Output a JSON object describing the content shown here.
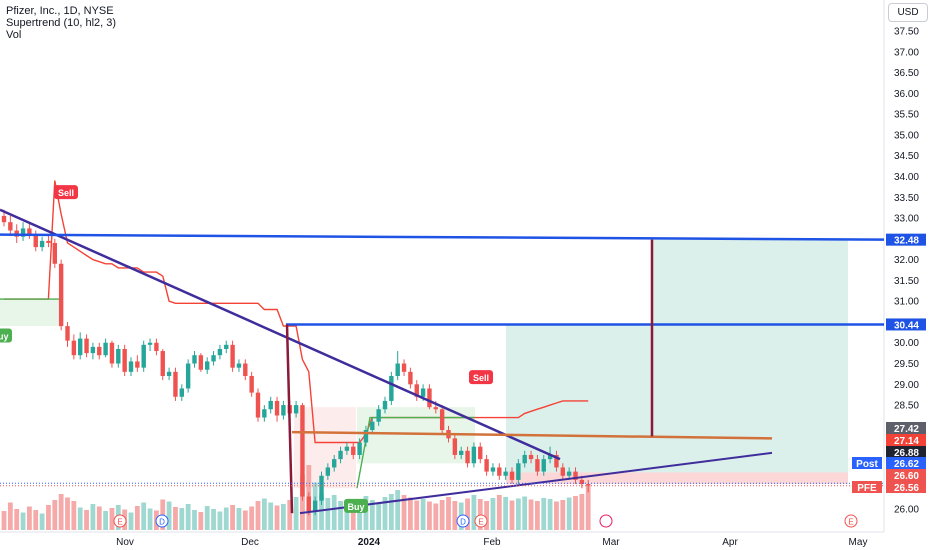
{
  "legend": {
    "symbol_line": "Pfizer, Inc., 1D, NYSE",
    "indicator_line": "Supertrend (10, hl2, 3)",
    "volume_line": "Vol"
  },
  "currency": "USD",
  "colors": {
    "up": "#26a69a",
    "down": "#ef5350",
    "supertrend_up": "#4caf50",
    "supertrend_down": "#f44336",
    "trendline": "#3f2d9c",
    "resistance": "#1e53e5",
    "pivot_line": "#d2723a",
    "target_zone": "#cfe9e4",
    "stop_zone": "#fbd7d8",
    "vertical_marker": "#8b1a3a"
  },
  "chart_data": {
    "type": "candlestick",
    "title": "Pfizer, Inc., 1D, NYSE",
    "ylim": [
      25.6,
      38.0
    ],
    "y_ticks": [
      "26.00",
      "26.50",
      "27.00",
      "27.50",
      "28.00",
      "28.50",
      "29.00",
      "29.50",
      "30.00",
      "30.50",
      "31.00",
      "31.50",
      "32.00",
      "32.50",
      "33.00",
      "33.50",
      "34.00",
      "34.50",
      "35.00",
      "35.50",
      "36.00",
      "36.50",
      "37.00",
      "37.50"
    ],
    "x_ticks": [
      "Nov",
      "Dec",
      "2024",
      "Feb",
      "Mar",
      "Apr",
      "May"
    ],
    "horizontal_lines": [
      32.48,
      30.44
    ],
    "price_labels": [
      {
        "label": "",
        "value": "32.48",
        "color": "#1e53e5"
      },
      {
        "label": "",
        "value": "30.44",
        "color": "#1e53e5"
      },
      {
        "label": "",
        "value": "27.42",
        "color": "#5d606b"
      },
      {
        "label": "",
        "value": "27.14",
        "color": "#f44336"
      },
      {
        "label": "",
        "value": "26.88",
        "color": "#1f2330"
      },
      {
        "label": "Post",
        "value": "26.62",
        "color": "#2962ff"
      },
      {
        "label": "",
        "value": "26.60",
        "color": "#ef5350"
      },
      {
        "label": "PFE",
        "value": "26.56",
        "color": "#ef5350"
      }
    ],
    "signals": [
      {
        "text": "Sell",
        "type": "sell"
      },
      {
        "text": "Buy",
        "type": "buy"
      },
      {
        "text": "Sell",
        "type": "sell"
      },
      {
        "text": "Buy",
        "type": "buy"
      }
    ],
    "events": [
      "E",
      "D",
      "D",
      "E",
      "E"
    ],
    "series": [
      {
        "name": "PFE",
        "kind": "ohlc",
        "open": [
          33.05,
          32.9,
          32.7,
          32.55,
          32.75,
          32.6,
          32.3,
          32.45,
          32.4,
          31.9,
          30.4,
          30.05,
          29.7,
          30.1,
          29.75,
          29.9,
          29.7,
          30.0,
          29.5,
          29.85,
          29.3,
          29.55,
          29.4,
          29.95,
          30.0,
          29.8,
          29.2,
          29.3,
          28.7,
          28.9,
          29.5,
          29.7,
          29.35,
          29.55,
          29.7,
          29.85,
          29.95,
          29.4,
          29.5,
          29.2,
          28.8,
          28.2,
          28.4,
          28.6,
          28.25,
          28.5,
          28.3,
          28.5,
          26.3,
          25.95,
          26.2,
          26.8,
          27.0,
          27.2,
          27.4,
          27.5,
          27.3,
          27.6,
          27.9,
          28.1,
          28.4,
          28.6,
          29.2,
          29.5,
          29.3,
          29.0,
          28.7,
          28.9,
          28.45,
          28.4,
          27.9,
          27.7,
          27.3,
          27.4,
          27.1,
          27.5,
          27.2,
          26.9,
          27.0,
          26.8,
          26.9,
          26.7,
          27.1,
          27.3,
          27.2,
          26.9,
          27.2,
          27.3,
          27.0,
          26.8,
          26.9,
          26.7,
          26.6
        ],
        "close": [
          32.9,
          32.7,
          32.55,
          32.75,
          32.6,
          32.3,
          32.45,
          32.4,
          31.9,
          30.4,
          30.05,
          29.7,
          30.1,
          29.75,
          29.9,
          29.7,
          30.0,
          29.5,
          29.85,
          29.3,
          29.55,
          29.4,
          29.95,
          30.0,
          29.8,
          29.2,
          29.3,
          28.7,
          28.9,
          29.5,
          29.7,
          29.35,
          29.55,
          29.7,
          29.85,
          29.95,
          29.4,
          29.5,
          29.2,
          28.8,
          28.2,
          28.4,
          28.6,
          28.25,
          28.5,
          28.3,
          28.5,
          26.3,
          25.95,
          26.2,
          26.8,
          27.0,
          27.2,
          27.4,
          27.5,
          27.3,
          27.6,
          27.9,
          28.1,
          28.4,
          28.6,
          29.2,
          29.5,
          29.3,
          29.0,
          28.7,
          28.9,
          28.45,
          28.4,
          27.9,
          27.7,
          27.3,
          27.4,
          27.1,
          27.5,
          27.2,
          26.9,
          27.0,
          26.8,
          26.9,
          26.7,
          27.1,
          27.3,
          27.2,
          26.9,
          27.2,
          27.3,
          27.0,
          26.8,
          26.9,
          26.7,
          26.6,
          26.56
        ],
        "high": [
          33.2,
          33.05,
          32.85,
          32.9,
          32.9,
          32.7,
          32.55,
          32.6,
          32.5,
          32.0,
          30.5,
          30.2,
          30.25,
          30.2,
          30.0,
          30.0,
          30.1,
          30.05,
          29.95,
          29.95,
          29.65,
          29.7,
          30.05,
          30.1,
          30.1,
          29.85,
          29.4,
          29.4,
          29.0,
          29.6,
          29.8,
          29.75,
          29.65,
          29.8,
          29.95,
          30.05,
          30.05,
          29.6,
          29.6,
          29.3,
          28.9,
          28.5,
          28.7,
          28.7,
          28.6,
          28.6,
          28.6,
          28.55,
          26.4,
          26.3,
          26.9,
          27.1,
          27.3,
          27.5,
          27.6,
          27.6,
          27.7,
          28.0,
          28.2,
          28.5,
          28.7,
          29.3,
          29.8,
          29.6,
          29.4,
          29.1,
          29.0,
          29.0,
          28.6,
          28.5,
          28.0,
          27.8,
          27.5,
          27.5,
          27.6,
          27.6,
          27.3,
          27.1,
          27.1,
          27.0,
          27.0,
          27.2,
          27.4,
          27.4,
          27.3,
          27.3,
          27.5,
          27.4,
          27.1,
          27.0,
          27.0,
          26.8,
          26.7
        ],
        "low": [
          32.8,
          32.6,
          32.4,
          32.45,
          32.5,
          32.2,
          32.2,
          32.3,
          31.8,
          30.3,
          29.9,
          29.6,
          29.6,
          29.65,
          29.6,
          29.6,
          29.65,
          29.4,
          29.4,
          29.2,
          29.2,
          29.3,
          29.3,
          29.8,
          29.7,
          29.1,
          29.1,
          28.6,
          28.6,
          28.8,
          29.4,
          29.3,
          29.25,
          29.45,
          29.6,
          29.75,
          29.3,
          29.3,
          29.1,
          28.7,
          28.1,
          28.1,
          28.3,
          28.1,
          28.15,
          28.2,
          28.2,
          26.2,
          25.85,
          25.85,
          26.1,
          26.7,
          26.9,
          27.1,
          27.3,
          27.2,
          27.2,
          27.5,
          27.8,
          28.0,
          28.3,
          28.5,
          29.1,
          29.2,
          28.9,
          28.6,
          28.6,
          28.4,
          28.3,
          27.8,
          27.6,
          27.2,
          27.2,
          27.0,
          27.0,
          27.1,
          26.8,
          26.8,
          26.7,
          26.7,
          26.6,
          26.6,
          27.0,
          27.1,
          26.8,
          26.8,
          27.1,
          26.9,
          26.7,
          26.7,
          26.6,
          26.5,
          26.4
        ]
      },
      {
        "name": "Supertrend",
        "values": [
          31.05,
          31.05,
          31.05,
          31.05,
          31.05,
          31.05,
          31.05,
          31.05,
          33.9,
          33.1,
          32.4,
          32.3,
          32.2,
          32.1,
          32.0,
          31.95,
          31.9,
          31.9,
          31.8,
          31.8,
          31.8,
          31.8,
          31.7,
          31.7,
          31.7,
          31.6,
          31.0,
          30.95,
          30.95,
          30.95,
          30.95,
          30.95,
          30.95,
          30.95,
          30.95,
          30.95,
          30.95,
          30.95,
          30.95,
          30.95,
          30.95,
          30.8,
          30.8,
          30.8,
          30.4,
          30.4,
          30.4,
          29.6,
          29.3,
          27.6,
          27.6,
          27.6,
          27.6,
          27.6,
          27.6,
          27.6,
          27.6,
          27.8,
          28.2,
          28.2,
          28.2,
          28.2,
          28.2,
          28.2,
          28.2,
          28.2,
          28.2,
          28.2,
          28.2,
          28.2,
          28.2,
          28.2,
          28.2,
          28.2,
          28.2,
          28.2,
          28.2,
          28.2,
          28.2,
          28.2,
          28.2,
          28.2,
          28.3,
          28.35,
          28.4,
          28.45,
          28.5,
          28.55,
          28.6,
          28.6,
          28.6,
          28.6,
          28.6
        ]
      },
      {
        "name": "Vol",
        "values": [
          38,
          55,
          42,
          35,
          47,
          40,
          33,
          50,
          60,
          72,
          65,
          58,
          45,
          40,
          52,
          47,
          38,
          44,
          50,
          41,
          35,
          48,
          55,
          43,
          39,
          61,
          57,
          46,
          44,
          52,
          40,
          36,
          48,
          42,
          37,
          45,
          50,
          44,
          39,
          47,
          58,
          63,
          55,
          49,
          52,
          60,
          66,
          110,
          130,
          95,
          72,
          64,
          70,
          58,
          52,
          61,
          55,
          68,
          60,
          54,
          66,
          72,
          80,
          70,
          65,
          59,
          62,
          57,
          53,
          60,
          66,
          58,
          55,
          63,
          70,
          62,
          58,
          64,
          70,
          66,
          59,
          63,
          67,
          61,
          58,
          64,
          62,
          57,
          60,
          65,
          68,
          72,
          88
        ]
      }
    ],
    "dates_first_last": [
      "",
      ""
    ]
  }
}
